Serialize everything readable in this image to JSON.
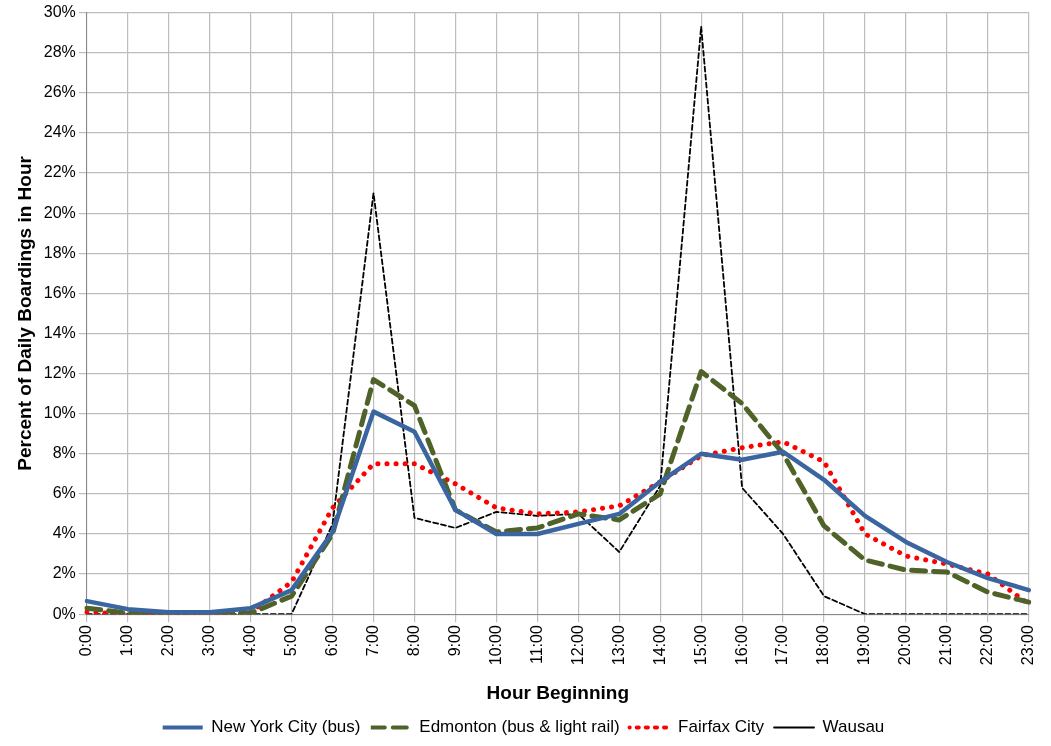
{
  "chart_data": {
    "type": "line",
    "xlabel": "Hour Beginning",
    "ylabel": "Percent of Daily Boardings in Hour",
    "categories": [
      "0:00",
      "1:00",
      "2:00",
      "3:00",
      "4:00",
      "5:00",
      "6:00",
      "7:00",
      "8:00",
      "9:00",
      "10:00",
      "11:00",
      "12:00",
      "13:00",
      "14:00",
      "15:00",
      "16:00",
      "17:00",
      "18:00",
      "19:00",
      "20:00",
      "21:00",
      "22:00",
      "23:00"
    ],
    "series": [
      {
        "name": "New York City (bus)",
        "color": "#3a65a0",
        "line_style": "solid",
        "values": [
          0.65,
          0.25,
          0.1,
          0.1,
          0.3,
          1.2,
          4.1,
          10.1,
          9.1,
          5.2,
          4.0,
          4.0,
          4.5,
          5.0,
          6.6,
          8.0,
          7.7,
          8.1,
          6.7,
          4.9,
          3.6,
          2.6,
          1.8,
          1.2
        ]
      },
      {
        "name": "Edmonton (bus & light rail)",
        "color": "#4f6228",
        "line_style": "dashed",
        "values": [
          0.3,
          0.05,
          0.05,
          0.05,
          0.05,
          0.9,
          4.0,
          11.7,
          10.4,
          5.2,
          4.1,
          4.3,
          5.0,
          4.7,
          6.0,
          12.1,
          10.5,
          8.0,
          4.4,
          2.7,
          2.2,
          2.1,
          1.1,
          0.6
        ]
      },
      {
        "name": "Fairfax City",
        "color": "#ff0000",
        "line_style": "dotted",
        "values": [
          0.1,
          0.0,
          0.0,
          0.0,
          0.1,
          1.6,
          5.3,
          7.5,
          7.5,
          6.5,
          5.3,
          5.0,
          5.1,
          5.4,
          6.6,
          7.9,
          8.3,
          8.6,
          7.6,
          4.0,
          2.9,
          2.5,
          2.0,
          0.5
        ]
      },
      {
        "name": "Wausau",
        "color": "#000000",
        "line_style": "dashed",
        "values": [
          0,
          0,
          0,
          0,
          0,
          0,
          4.5,
          21.0,
          4.8,
          4.3,
          5.1,
          4.9,
          5.0,
          3.1,
          6.4,
          29.3,
          6.3,
          4.0,
          0.9,
          0,
          0,
          0,
          0,
          0
        ]
      }
    ],
    "ylim": [
      0,
      30
    ],
    "yticks": [
      {
        "value": 0,
        "label": "0%"
      },
      {
        "value": 2,
        "label": "2%"
      },
      {
        "value": 4,
        "label": "4%"
      },
      {
        "value": 6,
        "label": "6%"
      },
      {
        "value": 8,
        "label": "8%"
      },
      {
        "value": 10,
        "label": "10%"
      },
      {
        "value": 12,
        "label": "12%"
      },
      {
        "value": 14,
        "label": "14%"
      },
      {
        "value": 16,
        "label": "16%"
      },
      {
        "value": 18,
        "label": "18%"
      },
      {
        "value": 20,
        "label": "20%"
      },
      {
        "value": 22,
        "label": "22%"
      },
      {
        "value": 24,
        "label": "24%"
      },
      {
        "value": 26,
        "label": "26%"
      },
      {
        "value": 28,
        "label": "28%"
      },
      {
        "value": 30,
        "label": "30%"
      }
    ],
    "grid": true,
    "legend": "bottom",
    "marker": "none"
  }
}
